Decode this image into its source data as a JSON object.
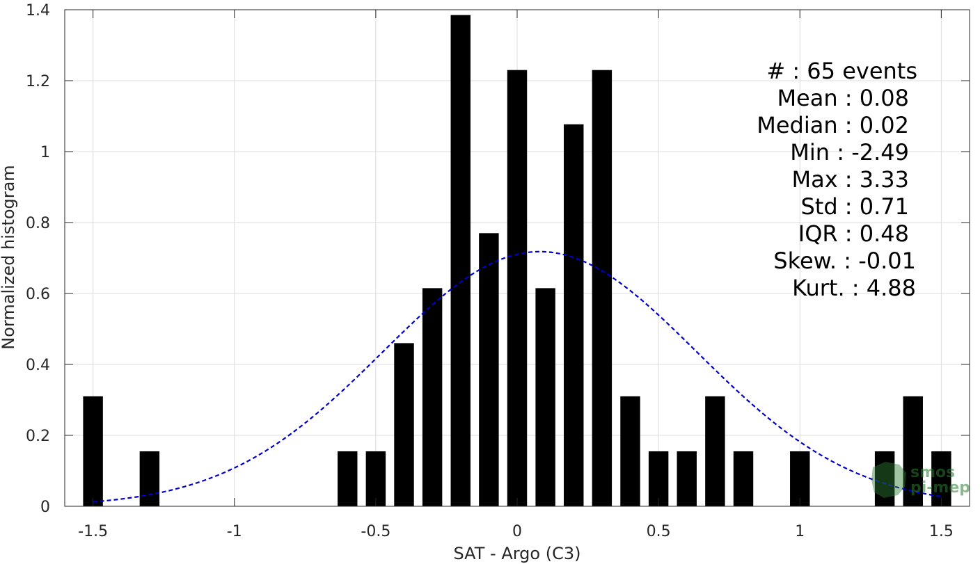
{
  "chart_data": {
    "type": "bar",
    "xlabel": "SAT - Argo (C3)",
    "ylabel": "Normalized histogram",
    "xlim": [
      -1.6,
      1.6
    ],
    "ylim": [
      0,
      1.4
    ],
    "xticks": [
      -1.5,
      -1,
      -0.5,
      0,
      0.5,
      1,
      1.5
    ],
    "xtick_labels": [
      "-1.5",
      "-1",
      "-0.5",
      "0",
      "0.5",
      "1",
      "1.5"
    ],
    "yticks": [
      0,
      0.2,
      0.4,
      0.6,
      0.8,
      1.0,
      1.2,
      1.4
    ],
    "ytick_labels": [
      "0",
      "0.2",
      "0.4",
      "0.6",
      "0.8",
      "1",
      "1.2",
      "1.4"
    ],
    "grid": true,
    "bar_width": 0.07,
    "bars": [
      {
        "x": -1.5,
        "y": 0.31
      },
      {
        "x": -1.3,
        "y": 0.155
      },
      {
        "x": -0.6,
        "y": 0.155
      },
      {
        "x": -0.5,
        "y": 0.155
      },
      {
        "x": -0.4,
        "y": 0.46
      },
      {
        "x": -0.3,
        "y": 0.615
      },
      {
        "x": -0.2,
        "y": 1.385
      },
      {
        "x": -0.1,
        "y": 0.77
      },
      {
        "x": 0.0,
        "y": 1.23
      },
      {
        "x": 0.1,
        "y": 0.615
      },
      {
        "x": 0.2,
        "y": 1.077
      },
      {
        "x": 0.3,
        "y": 1.23
      },
      {
        "x": 0.4,
        "y": 0.31
      },
      {
        "x": 0.5,
        "y": 0.155
      },
      {
        "x": 0.6,
        "y": 0.155
      },
      {
        "x": 0.7,
        "y": 0.31
      },
      {
        "x": 0.8,
        "y": 0.155
      },
      {
        "x": 1.0,
        "y": 0.155
      },
      {
        "x": 1.3,
        "y": 0.155
      },
      {
        "x": 1.4,
        "y": 0.31
      },
      {
        "x": 1.5,
        "y": 0.155
      }
    ],
    "fit_curve": {
      "type": "normal",
      "mean": 0.08,
      "std": 0.555,
      "peak": 0.718,
      "x_range": [
        -1.5,
        1.5
      ],
      "color": "#0000cc",
      "style": "dashed"
    },
    "bar_color": "#000000",
    "stats": [
      {
        "label": "#  : 65 events"
      },
      {
        "label": "Mean : 0.08"
      },
      {
        "label": "Median : 0.02"
      },
      {
        "label": "Min : -2.49"
      },
      {
        "label": "Max : 3.33"
      },
      {
        "label": "Std : 0.71"
      },
      {
        "label": "IQR : 0.48"
      },
      {
        "label": "Skew. : -0.01"
      },
      {
        "label": "Kurt. : 4.88"
      }
    ],
    "watermark": [
      "smos",
      "pi-mep"
    ]
  }
}
